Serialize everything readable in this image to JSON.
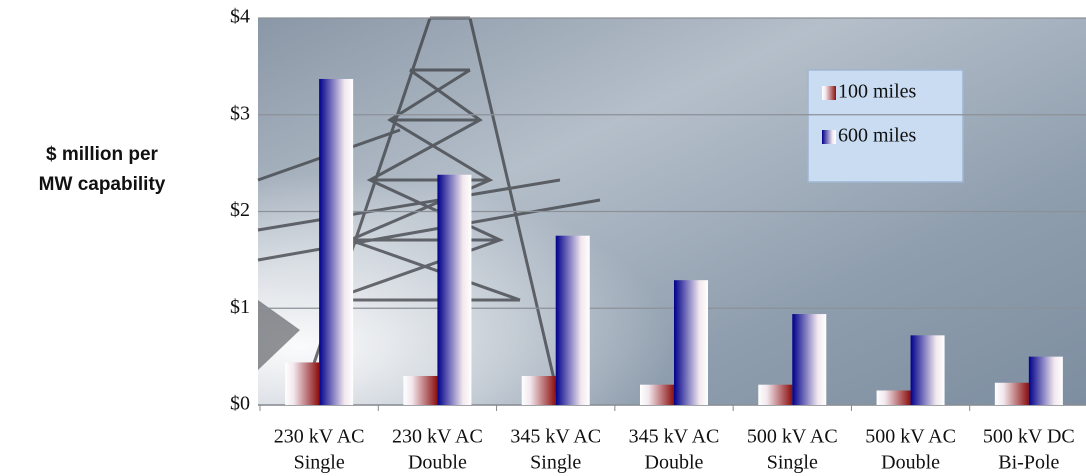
{
  "chart_data": {
    "type": "bar",
    "y_label": [
      "$ million per",
      "MW capability"
    ],
    "categories": [
      [
        "230 kV AC",
        "Single"
      ],
      [
        "230 kV AC",
        "Double"
      ],
      [
        "345 kV AC",
        "Single"
      ],
      [
        "345 kV AC",
        "Double"
      ],
      [
        "500 kV AC",
        "Single"
      ],
      [
        "500 kV AC",
        "Double"
      ],
      [
        "500 kV DC",
        "Bi-Pole"
      ]
    ],
    "series": [
      {
        "name": "100 miles",
        "color": "#8b0f0f",
        "values": [
          0.44,
          0.3,
          0.3,
          0.21,
          0.21,
          0.15,
          0.23
        ]
      },
      {
        "name": "600 miles",
        "color": "#00008b",
        "values": [
          3.37,
          2.38,
          1.75,
          1.29,
          0.94,
          0.72,
          0.5
        ]
      }
    ],
    "ylim": [
      0,
      4
    ],
    "yticks": [
      {
        "value": 0,
        "label": "$0"
      },
      {
        "value": 1,
        "label": "$1"
      },
      {
        "value": 2,
        "label": "$2"
      },
      {
        "value": 3,
        "label": "$3"
      },
      {
        "value": 4,
        "label": "$4"
      }
    ],
    "grid": true,
    "legend": "upper right"
  }
}
